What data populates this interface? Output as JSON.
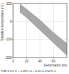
{
  "chart_data": {
    "type": "area",
    "y_label": "Transition temperature (°C)",
    "x_label": "Deformation (%)",
    "caption": "TZM  0.5% Ti – 0.08% Zr – 0.01 to 0.04% C",
    "band": {
      "x": [
        10,
        20,
        40,
        60,
        80
      ],
      "upper": [
        100,
        70,
        10,
        -60,
        -120
      ],
      "lower": [
        50,
        20,
        -50,
        -120,
        -190
      ]
    },
    "color": "#a8a8a8",
    "xlim": [
      0,
      80
    ],
    "xticks": [
      0,
      20,
      40,
      60
    ],
    "ylim": [
      -200,
      100
    ],
    "yticks": [
      -200,
      -100,
      0,
      100
    ],
    "grid": true
  }
}
